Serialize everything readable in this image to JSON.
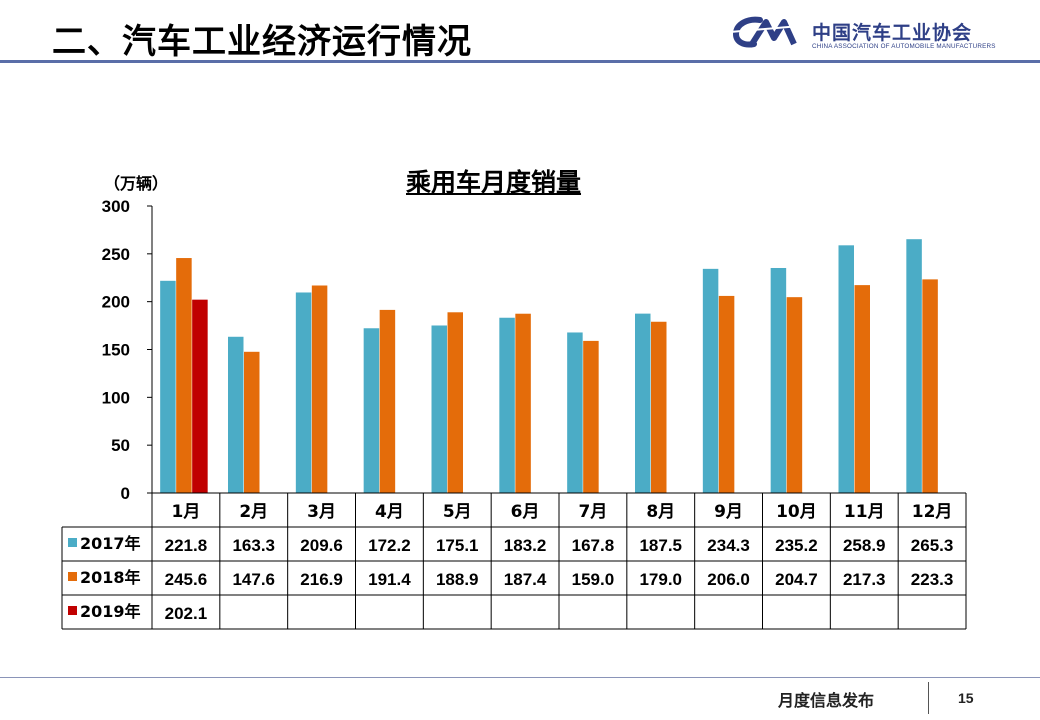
{
  "header": {
    "title": "二、汽车工业经济运行情况"
  },
  "logo": {
    "cn": "中国汽车工业协会",
    "en": "CHINA ASSOCIATION OF AUTOMOBILE MANUFACTURERS"
  },
  "footer": {
    "text": "月度信息发布",
    "page": "15"
  },
  "chart_data": {
    "type": "bar",
    "title": "乘用车月度销量",
    "ylabel": "（万辆）",
    "xlabel": "",
    "ylim": [
      0,
      300
    ],
    "yticks": [
      0,
      50,
      100,
      150,
      200,
      250,
      300
    ],
    "categories": [
      "1月",
      "2月",
      "3月",
      "4月",
      "5月",
      "6月",
      "7月",
      "8月",
      "9月",
      "10月",
      "11月",
      "12月"
    ],
    "series": [
      {
        "name": "2017年",
        "color": "#4bacc6",
        "values": [
          221.8,
          163.3,
          209.6,
          172.2,
          175.1,
          183.2,
          167.8,
          187.5,
          234.3,
          235.2,
          258.9,
          265.3
        ]
      },
      {
        "name": "2018年",
        "color": "#e46c0a",
        "values": [
          245.6,
          147.6,
          216.9,
          191.4,
          188.9,
          187.4,
          159.0,
          179.0,
          206.0,
          204.7,
          217.3,
          223.3
        ]
      },
      {
        "name": "2019年",
        "color": "#c00000",
        "values": [
          202.1,
          null,
          null,
          null,
          null,
          null,
          null,
          null,
          null,
          null,
          null,
          null
        ]
      }
    ],
    "table_values": [
      [
        "221.8",
        "163.3",
        "209.6",
        "172.2",
        "175.1",
        "183.2",
        "167.8",
        "187.5",
        "234.3",
        "235.2",
        "258.9",
        "265.3"
      ],
      [
        "245.6",
        "147.6",
        "216.9",
        "191.4",
        "188.9",
        "187.4",
        "159.0",
        "179.0",
        "206.0",
        "204.7",
        "217.3",
        "223.3"
      ],
      [
        "202.1",
        "",
        "",
        "",
        "",
        "",
        "",
        "",
        "",
        "",
        "",
        ""
      ]
    ],
    "grid": false,
    "legend": "data-table"
  }
}
